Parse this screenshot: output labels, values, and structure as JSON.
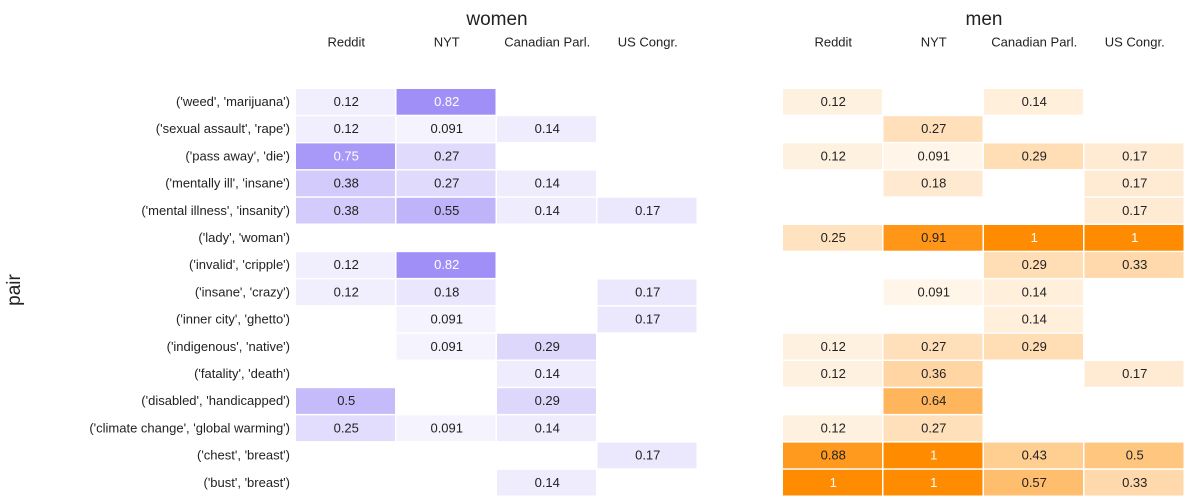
{
  "chart_data": [
    {
      "type": "heatmap",
      "title": "women",
      "ylabel": "pair",
      "color": "#8b76f5",
      "clim": [
        0,
        1
      ],
      "categories": [
        "Reddit",
        "NYT",
        "Canadian Parl.",
        "US Congr."
      ],
      "rows": [
        "('weed', 'marijuana')",
        "('sexual assault', 'rape')",
        "('pass away', 'die')",
        "('mentally ill', 'insane')",
        "('mental illness', 'insanity')",
        "('lady', 'woman')",
        "('invalid', 'cripple')",
        "('insane', 'crazy')",
        "('inner city', 'ghetto')",
        "('indigenous', 'native')",
        "('fatality', 'death')",
        "('disabled', 'handicapped')",
        "('climate change', 'global warming')",
        "('chest', 'breast')",
        "('bust', 'breast')"
      ],
      "values": [
        [
          0.12,
          0.82,
          null,
          null
        ],
        [
          0.12,
          0.091,
          0.14,
          null
        ],
        [
          0.75,
          0.27,
          null,
          null
        ],
        [
          0.38,
          0.27,
          0.14,
          null
        ],
        [
          0.38,
          0.55,
          0.14,
          0.17
        ],
        [
          null,
          null,
          null,
          null
        ],
        [
          0.12,
          0.82,
          null,
          null
        ],
        [
          0.12,
          0.18,
          null,
          0.17
        ],
        [
          null,
          0.091,
          null,
          0.17
        ],
        [
          null,
          0.091,
          0.29,
          null
        ],
        [
          null,
          null,
          0.14,
          null
        ],
        [
          0.5,
          null,
          0.29,
          null
        ],
        [
          0.25,
          0.091,
          0.14,
          null
        ],
        [
          null,
          null,
          null,
          0.17
        ],
        [
          null,
          null,
          0.14,
          null
        ]
      ]
    },
    {
      "type": "heatmap",
      "title": "men",
      "color": "#ff8c00",
      "clim": [
        0,
        1
      ],
      "categories": [
        "Reddit",
        "NYT",
        "Canadian Parl.",
        "US Congr."
      ],
      "values": [
        [
          0.12,
          null,
          0.14,
          null
        ],
        [
          null,
          0.27,
          null,
          null
        ],
        [
          0.12,
          0.091,
          0.29,
          0.17
        ],
        [
          null,
          0.18,
          null,
          0.17
        ],
        [
          null,
          null,
          null,
          0.17
        ],
        [
          0.25,
          0.91,
          1,
          1
        ],
        [
          null,
          null,
          0.29,
          0.33
        ],
        [
          null,
          0.091,
          0.14,
          null
        ],
        [
          null,
          null,
          0.14,
          null
        ],
        [
          0.12,
          0.27,
          0.29,
          null
        ],
        [
          0.12,
          0.36,
          null,
          0.17
        ],
        [
          null,
          0.64,
          null,
          null
        ],
        [
          0.12,
          0.27,
          null,
          null
        ],
        [
          0.88,
          1,
          0.43,
          0.5
        ],
        [
          1,
          1,
          0.57,
          0.33
        ]
      ]
    }
  ]
}
